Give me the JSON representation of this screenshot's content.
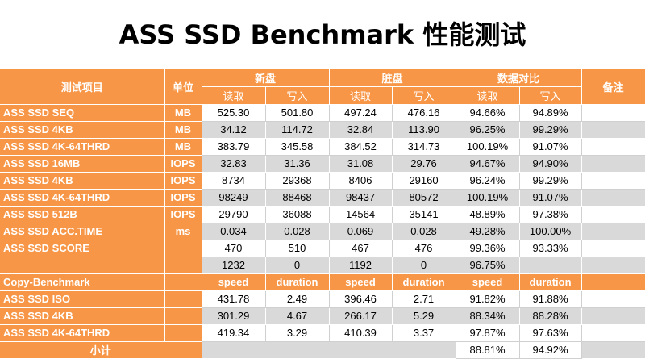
{
  "title": "ASS SSD Benchmark 性能测试",
  "header": {
    "test_item": "测试项目",
    "unit": "单位",
    "group_new": "新盘",
    "group_dirty": "脏盘",
    "group_compare": "数据对比",
    "remark": "备注",
    "read": "读取",
    "write": "写入"
  },
  "rows": [
    {
      "label": "ASS SSD SEQ",
      "unit": "MB",
      "v": [
        "525.30",
        "501.80",
        "497.24",
        "476.16",
        "94.66%",
        "94.89%"
      ]
    },
    {
      "label": "ASS SSD 4KB",
      "unit": "MB",
      "v": [
        "34.12",
        "114.72",
        "32.84",
        "113.90",
        "96.25%",
        "99.29%"
      ]
    },
    {
      "label": "ASS SSD 4K-64THRD",
      "unit": "MB",
      "v": [
        "383.79",
        "345.58",
        "384.52",
        "314.73",
        "100.19%",
        "91.07%"
      ]
    },
    {
      "label": "ASS SSD 16MB",
      "unit": "IOPS",
      "v": [
        "32.83",
        "31.36",
        "31.08",
        "29.76",
        "94.67%",
        "94.90%"
      ]
    },
    {
      "label": "ASS SSD 4KB",
      "unit": "IOPS",
      "v": [
        "8734",
        "29368",
        "8406",
        "29160",
        "96.24%",
        "99.29%"
      ]
    },
    {
      "label": "ASS SSD 4K-64THRD",
      "unit": "IOPS",
      "v": [
        "98249",
        "88468",
        "98437",
        "80572",
        "100.19%",
        "91.07%"
      ]
    },
    {
      "label": "ASS SSD 512B",
      "unit": "IOPS",
      "v": [
        "29790",
        "36088",
        "14564",
        "35141",
        "48.89%",
        "97.38%"
      ]
    },
    {
      "label": "ASS SSD ACC.TIME",
      "unit": "ms",
      "v": [
        "0.034",
        "0.028",
        "0.069",
        "0.028",
        "49.28%",
        "100.00%"
      ]
    },
    {
      "label": "ASS SSD SCORE",
      "unit": "",
      "v": [
        "470",
        "510",
        "467",
        "476",
        "99.36%",
        "93.33%"
      ]
    },
    {
      "label": "",
      "unit": "",
      "v": [
        "1232",
        "0",
        "1192",
        "0",
        "96.75%",
        ""
      ]
    }
  ],
  "copy": {
    "label": "Copy-Benchmark",
    "speed": "speed",
    "duration": "duration",
    "rows": [
      {
        "label": "ASS SSD ISO",
        "v": [
          "431.78",
          "2.49",
          "396.46",
          "2.71",
          "91.82%",
          "91.88%"
        ]
      },
      {
        "label": "ASS SSD 4KB",
        "v": [
          "301.29",
          "4.67",
          "266.17",
          "5.29",
          "88.34%",
          "88.28%"
        ]
      },
      {
        "label": "ASS SSD 4K-64THRD",
        "v": [
          "419.34",
          "3.29",
          "410.39",
          "3.37",
          "97.87%",
          "97.63%"
        ]
      }
    ]
  },
  "subtotal": {
    "label": "小计",
    "v": [
      "88.81%",
      "94.92%"
    ]
  }
}
